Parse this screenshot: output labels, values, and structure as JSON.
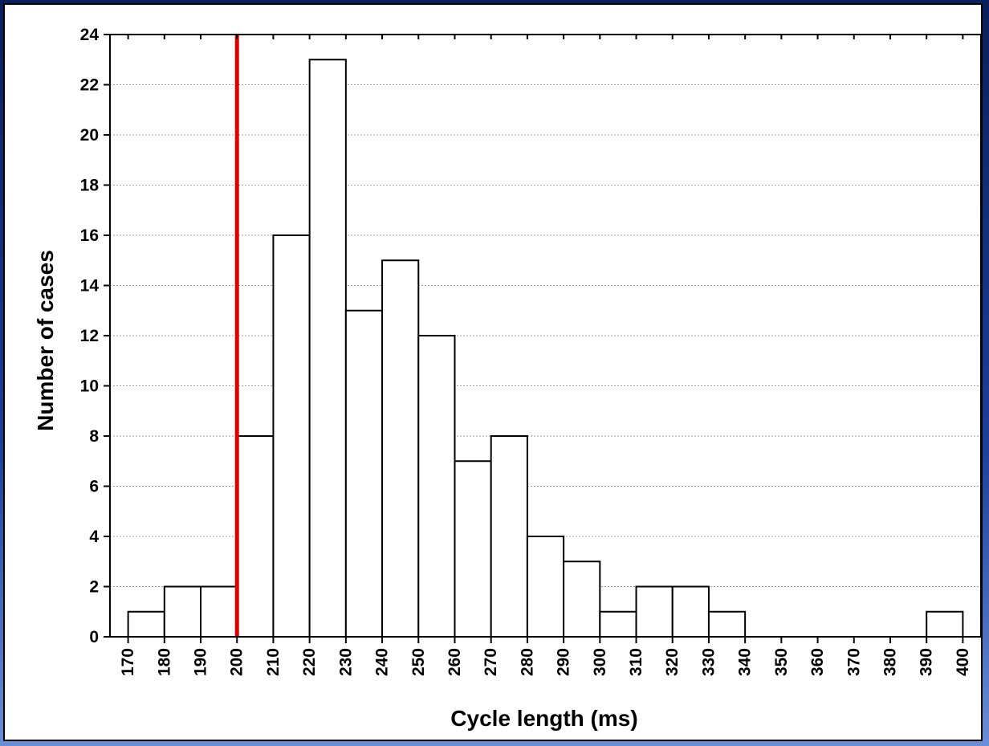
{
  "colors": {
    "bar_fill": "#ffffff",
    "bar_stroke": "#000000",
    "reference_line": "#e00000",
    "grid": "#9a9a9a",
    "background_frame": "#1c3f99"
  },
  "chart_data": {
    "type": "bar",
    "subtype": "histogram",
    "xlabel": "Cycle length (ms)",
    "ylabel": "Number of cases",
    "x_ticks": [
      170,
      180,
      190,
      200,
      210,
      220,
      230,
      240,
      250,
      260,
      270,
      280,
      290,
      300,
      310,
      320,
      330,
      340,
      350,
      360,
      370,
      380,
      390,
      400
    ],
    "bins": [
      {
        "start": 170,
        "end": 180,
        "value": 1
      },
      {
        "start": 180,
        "end": 190,
        "value": 2
      },
      {
        "start": 190,
        "end": 200,
        "value": 2
      },
      {
        "start": 200,
        "end": 210,
        "value": 8
      },
      {
        "start": 210,
        "end": 220,
        "value": 16
      },
      {
        "start": 220,
        "end": 230,
        "value": 23
      },
      {
        "start": 230,
        "end": 240,
        "value": 13
      },
      {
        "start": 240,
        "end": 250,
        "value": 15
      },
      {
        "start": 250,
        "end": 260,
        "value": 12
      },
      {
        "start": 260,
        "end": 270,
        "value": 7
      },
      {
        "start": 270,
        "end": 280,
        "value": 8
      },
      {
        "start": 280,
        "end": 290,
        "value": 4
      },
      {
        "start": 290,
        "end": 300,
        "value": 3
      },
      {
        "start": 300,
        "end": 310,
        "value": 1
      },
      {
        "start": 310,
        "end": 320,
        "value": 2
      },
      {
        "start": 320,
        "end": 330,
        "value": 2
      },
      {
        "start": 330,
        "end": 340,
        "value": 1
      },
      {
        "start": 340,
        "end": 350,
        "value": 0
      },
      {
        "start": 350,
        "end": 360,
        "value": 0
      },
      {
        "start": 360,
        "end": 370,
        "value": 0
      },
      {
        "start": 370,
        "end": 380,
        "value": 0
      },
      {
        "start": 380,
        "end": 390,
        "value": 0
      },
      {
        "start": 390,
        "end": 400,
        "value": 1
      }
    ],
    "xlim": [
      165,
      405
    ],
    "ylim": [
      0,
      24
    ],
    "y_ticks": [
      0,
      2,
      4,
      6,
      8,
      10,
      12,
      14,
      16,
      18,
      20,
      22,
      24
    ],
    "reference_line_x": 200,
    "grid": "horizontal-dotted",
    "legend": "none"
  }
}
